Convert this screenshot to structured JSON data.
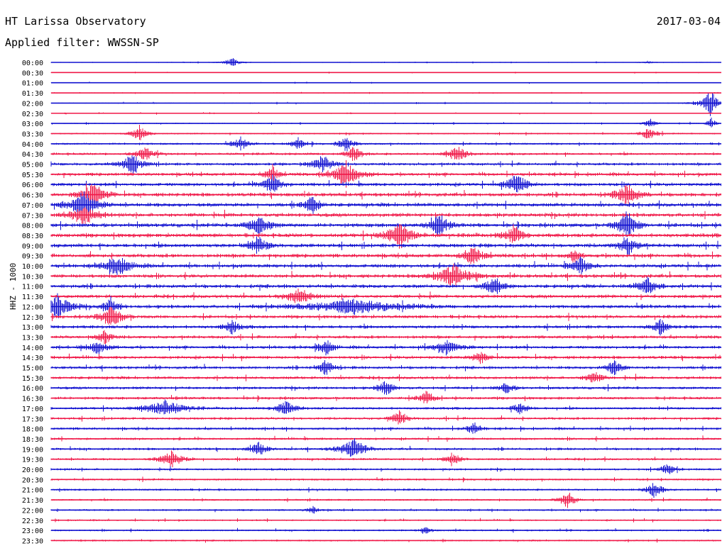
{
  "header": {
    "station": "HT Larissa Observatory",
    "date": "2017-03-04",
    "filter_label": "Applied filter:",
    "filter_name": "WWSSN-SP"
  },
  "channel": "HHZ - 1000",
  "colors": {
    "trace_a": "#1010d0",
    "trace_b": "#f01848"
  },
  "chart_data": {
    "type": "line",
    "title": "HT Larissa Observatory",
    "xlabel": "",
    "ylabel": "HHZ - 1000",
    "grid": false,
    "rows": [
      "00:00",
      "00:30",
      "01:00",
      "01:30",
      "02:00",
      "02:30",
      "03:00",
      "03:30",
      "04:00",
      "04:30",
      "05:00",
      "05:30",
      "06:00",
      "06:30",
      "07:00",
      "07:30",
      "08:00",
      "08:30",
      "09:00",
      "09:30",
      "10:00",
      "10:30",
      "11:00",
      "11:30",
      "12:00",
      "12:30",
      "13:00",
      "13:30",
      "14:00",
      "14:30",
      "15:00",
      "15:30",
      "16:00",
      "16:30",
      "17:00",
      "17:30",
      "18:00",
      "18:30",
      "19:00",
      "19:30",
      "20:00",
      "20:30",
      "21:00",
      "21:30",
      "22:00",
      "22:30",
      "23:00",
      "23:30"
    ],
    "series_colors": [
      "#1010d0",
      "#f01848"
    ],
    "noise_level": [
      0.5,
      0.5,
      0.5,
      0.5,
      0.6,
      0.6,
      0.7,
      0.9,
      1.2,
      1.4,
      1.7,
      1.9,
      2.0,
      2.1,
      2.2,
      2.2,
      2.3,
      2.3,
      2.3,
      2.2,
      2.2,
      2.1,
      2.1,
      2.0,
      2.0,
      1.9,
      1.9,
      1.8,
      1.8,
      1.8,
      1.7,
      1.7,
      1.6,
      1.6,
      1.5,
      1.5,
      1.5,
      1.4,
      1.4,
      1.3,
      1.3,
      1.2,
      1.2,
      1.1,
      1.1,
      1.0,
      1.0,
      1.0
    ],
    "events": [
      {
        "row": 0,
        "t": 0.27,
        "amp": 6,
        "w": 0.01
      },
      {
        "row": 0,
        "t": 0.89,
        "amp": 2,
        "w": 0.006
      },
      {
        "row": 4,
        "t": 0.98,
        "amp": 8,
        "w": 0.015
      },
      {
        "row": 4,
        "t": 0.985,
        "amp": 18,
        "w": 0.004
      },
      {
        "row": 6,
        "t": 0.985,
        "amp": 12,
        "w": 0.004
      },
      {
        "row": 6,
        "t": 0.893,
        "amp": 8,
        "w": 0.006
      },
      {
        "row": 7,
        "t": 0.132,
        "amp": 12,
        "w": 0.008
      },
      {
        "row": 7,
        "t": 0.892,
        "amp": 10,
        "w": 0.008
      },
      {
        "row": 8,
        "t": 0.283,
        "amp": 10,
        "w": 0.008
      },
      {
        "row": 8,
        "t": 0.368,
        "amp": 9,
        "w": 0.008
      },
      {
        "row": 8,
        "t": 0.44,
        "amp": 12,
        "w": 0.008
      },
      {
        "row": 9,
        "t": 0.14,
        "amp": 10,
        "w": 0.01
      },
      {
        "row": 9,
        "t": 0.452,
        "amp": 12,
        "w": 0.008
      },
      {
        "row": 9,
        "t": 0.605,
        "amp": 14,
        "w": 0.01
      },
      {
        "row": 10,
        "t": 0.12,
        "amp": 14,
        "w": 0.012
      },
      {
        "row": 10,
        "t": 0.405,
        "amp": 12,
        "w": 0.012
      },
      {
        "row": 11,
        "t": 0.44,
        "amp": 18,
        "w": 0.014
      },
      {
        "row": 11,
        "t": 0.33,
        "amp": 14,
        "w": 0.006
      },
      {
        "row": 12,
        "t": 0.33,
        "amp": 14,
        "w": 0.01
      },
      {
        "row": 12,
        "t": 0.695,
        "amp": 18,
        "w": 0.01
      },
      {
        "row": 13,
        "t": 0.063,
        "amp": 20,
        "w": 0.012
      },
      {
        "row": 13,
        "t": 0.86,
        "amp": 16,
        "w": 0.012
      },
      {
        "row": 14,
        "t": 0.05,
        "amp": 22,
        "w": 0.014
      },
      {
        "row": 14,
        "t": 0.39,
        "amp": 14,
        "w": 0.008
      },
      {
        "row": 15,
        "t": 0.05,
        "amp": 16,
        "w": 0.014
      },
      {
        "row": 16,
        "t": 0.31,
        "amp": 14,
        "w": 0.012
      },
      {
        "row": 16,
        "t": 0.58,
        "amp": 16,
        "w": 0.01
      },
      {
        "row": 16,
        "t": 0.86,
        "amp": 22,
        "w": 0.01
      },
      {
        "row": 17,
        "t": 0.52,
        "amp": 18,
        "w": 0.014
      },
      {
        "row": 17,
        "t": 0.69,
        "amp": 14,
        "w": 0.01
      },
      {
        "row": 18,
        "t": 0.31,
        "amp": 12,
        "w": 0.01
      },
      {
        "row": 18,
        "t": 0.86,
        "amp": 14,
        "w": 0.01
      },
      {
        "row": 19,
        "t": 0.63,
        "amp": 14,
        "w": 0.01
      },
      {
        "row": 19,
        "t": 0.78,
        "amp": 10,
        "w": 0.006
      },
      {
        "row": 20,
        "t": 0.1,
        "amp": 14,
        "w": 0.014
      },
      {
        "row": 20,
        "t": 0.79,
        "amp": 12,
        "w": 0.01
      },
      {
        "row": 21,
        "t": 0.6,
        "amp": 16,
        "w": 0.018
      },
      {
        "row": 22,
        "t": 0.66,
        "amp": 12,
        "w": 0.01
      },
      {
        "row": 22,
        "t": 0.89,
        "amp": 14,
        "w": 0.01
      },
      {
        "row": 23,
        "t": 0.37,
        "amp": 14,
        "w": 0.012
      },
      {
        "row": 24,
        "t": 0.01,
        "amp": 18,
        "w": 0.014
      },
      {
        "row": 24,
        "t": 0.09,
        "amp": 14,
        "w": 0.008
      },
      {
        "row": 24,
        "t": 0.45,
        "amp": 10,
        "w": 0.05
      },
      {
        "row": 25,
        "t": 0.09,
        "amp": 16,
        "w": 0.012
      },
      {
        "row": 26,
        "t": 0.27,
        "amp": 10,
        "w": 0.008
      },
      {
        "row": 26,
        "t": 0.91,
        "amp": 12,
        "w": 0.008
      },
      {
        "row": 27,
        "t": 0.08,
        "amp": 10,
        "w": 0.008
      },
      {
        "row": 28,
        "t": 0.07,
        "amp": 10,
        "w": 0.01
      },
      {
        "row": 28,
        "t": 0.41,
        "amp": 12,
        "w": 0.008
      },
      {
        "row": 28,
        "t": 0.59,
        "amp": 10,
        "w": 0.014
      },
      {
        "row": 29,
        "t": 0.64,
        "amp": 10,
        "w": 0.008
      },
      {
        "row": 30,
        "t": 0.41,
        "amp": 12,
        "w": 0.008
      },
      {
        "row": 30,
        "t": 0.84,
        "amp": 12,
        "w": 0.008
      },
      {
        "row": 31,
        "t": 0.81,
        "amp": 10,
        "w": 0.008
      },
      {
        "row": 32,
        "t": 0.5,
        "amp": 12,
        "w": 0.008
      },
      {
        "row": 32,
        "t": 0.68,
        "amp": 8,
        "w": 0.008
      },
      {
        "row": 33,
        "t": 0.56,
        "amp": 10,
        "w": 0.008
      },
      {
        "row": 34,
        "t": 0.17,
        "amp": 12,
        "w": 0.02
      },
      {
        "row": 34,
        "t": 0.35,
        "amp": 12,
        "w": 0.01
      },
      {
        "row": 34,
        "t": 0.7,
        "amp": 10,
        "w": 0.008
      },
      {
        "row": 35,
        "t": 0.52,
        "amp": 12,
        "w": 0.008
      },
      {
        "row": 36,
        "t": 0.63,
        "amp": 8,
        "w": 0.008
      },
      {
        "row": 38,
        "t": 0.31,
        "amp": 12,
        "w": 0.008
      },
      {
        "row": 38,
        "t": 0.45,
        "amp": 14,
        "w": 0.014
      },
      {
        "row": 39,
        "t": 0.18,
        "amp": 12,
        "w": 0.012
      },
      {
        "row": 39,
        "t": 0.6,
        "amp": 10,
        "w": 0.008
      },
      {
        "row": 40,
        "t": 0.92,
        "amp": 8,
        "w": 0.008
      },
      {
        "row": 42,
        "t": 0.9,
        "amp": 12,
        "w": 0.008
      },
      {
        "row": 43,
        "t": 0.77,
        "amp": 14,
        "w": 0.008
      },
      {
        "row": 44,
        "t": 0.39,
        "amp": 6,
        "w": 0.006
      },
      {
        "row": 46,
        "t": 0.56,
        "amp": 5,
        "w": 0.006
      }
    ]
  }
}
